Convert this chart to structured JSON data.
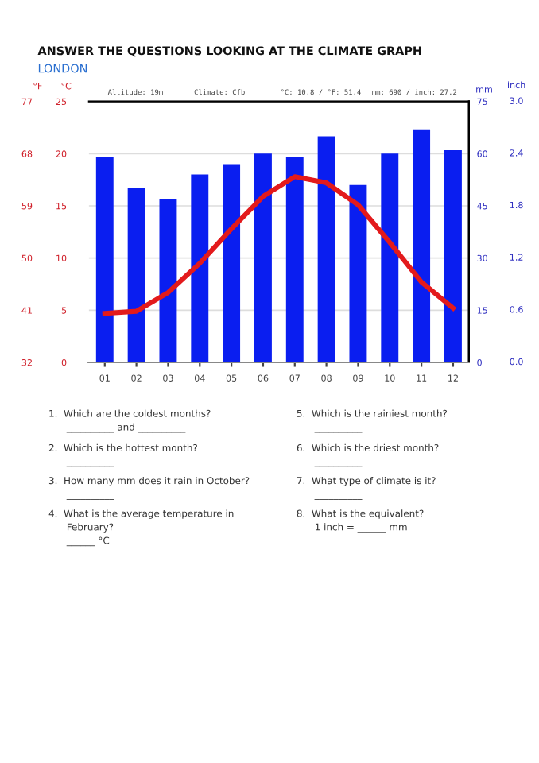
{
  "chart_data": {
    "type": "bar",
    "title": "ANSWER THE QUESTIONS LOOKING AT THE CLIMATE GRAPH",
    "subtitle": "LONDON",
    "categories": [
      "01",
      "02",
      "03",
      "04",
      "05",
      "06",
      "07",
      "08",
      "09",
      "10",
      "11",
      "12"
    ],
    "series": [
      {
        "axis": "y2",
        "color": "#0a1ef0",
        "values": [
          59,
          50,
          47,
          54,
          57,
          60,
          59,
          65,
          51,
          60,
          67,
          61
        ]
      },
      {
        "type": "line",
        "axis": "y",
        "color": "#e31a1c",
        "values": [
          4.7,
          4.9,
          6.7,
          9.5,
          12.8,
          15.9,
          17.8,
          17.2,
          15.1,
          11.5,
          7.7,
          5.2
        ]
      }
    ],
    "ylabel": "°C",
    "ylim": [
      0,
      25
    ],
    "yticks": [
      0,
      5,
      10,
      15,
      20,
      25
    ],
    "y3label": "°F",
    "y3lim": [
      32,
      77
    ],
    "y3ticks": [
      32,
      41,
      50,
      59,
      68,
      77
    ],
    "y2label": "mm",
    "y2lim": [
      0,
      75
    ],
    "y2ticks": [
      0,
      15,
      30,
      45,
      60,
      75
    ],
    "grid": "y",
    "marker": "none",
    "line_style": "solid",
    "annotations": [
      "inch",
      "0.0",
      "0.6",
      "1.2",
      "1.8",
      "2.4",
      "3.0",
      "Altitude: 19m",
      "Climate: Cfb",
      "°C: 10.8 / °F: 51.4",
      "mm: 690 / inch: 27.2",
      "1.  Which are the coldest months?\n      __________ and __________",
      "2.  Which is the hottest month?\n      __________",
      "3.  How many mm does it rain in October?\n      __________",
      "4.  What is the average temperature in\n      February?\n      ______ °C",
      "5.  Which is the rainiest month?\n      __________",
      "6.  Which is the driest month?\n      __________",
      "7.  What type of climate is it?\n      __________",
      "8.  What is the equivalent?\n      1 inch = ______ mm"
    ]
  }
}
